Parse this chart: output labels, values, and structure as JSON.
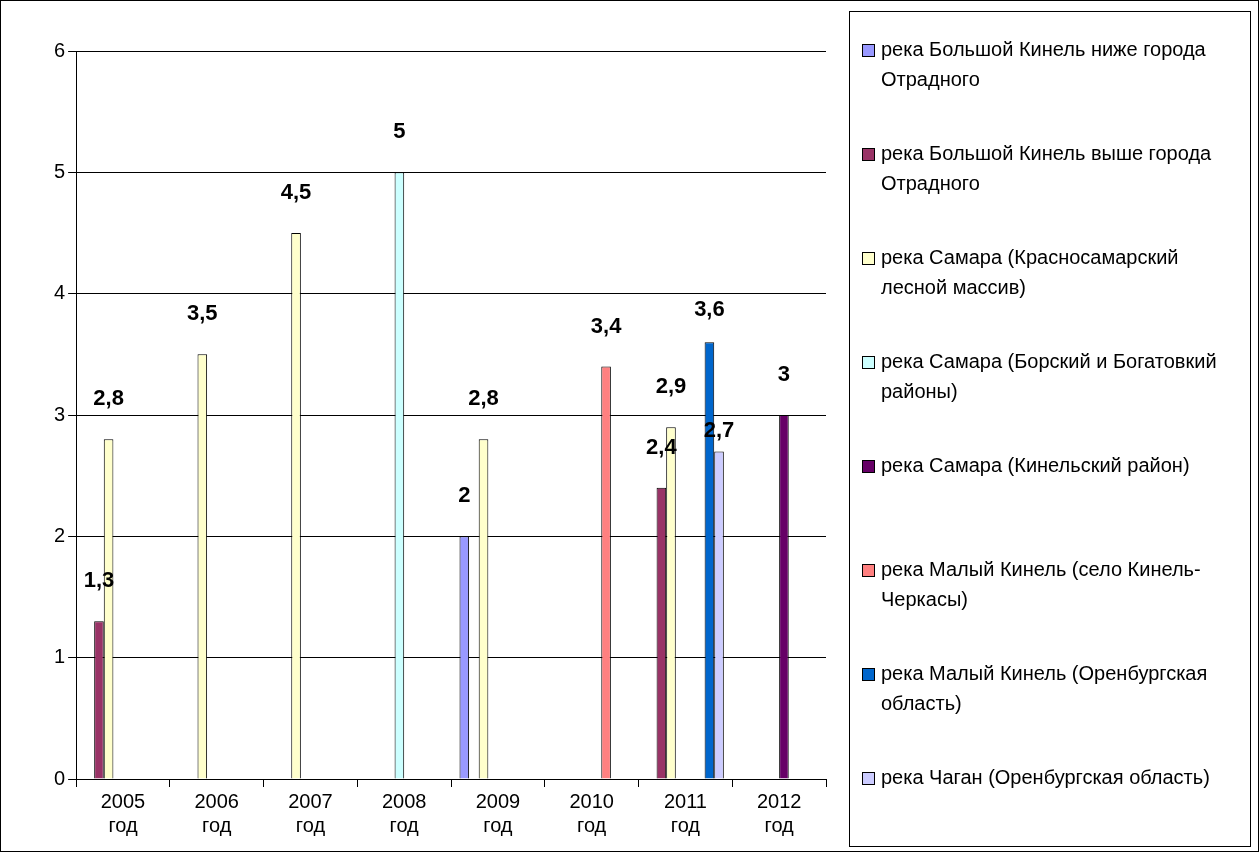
{
  "chart_data": {
    "type": "bar",
    "categories": [
      "2005 год",
      "2006 год",
      "2007 год",
      "2008 год",
      "2009 год",
      "2010 год",
      "2011 год",
      "2012 год"
    ],
    "ylim": [
      0,
      6
    ],
    "yticks": [
      0,
      1,
      2,
      3,
      4,
      5,
      6
    ],
    "grid": "y",
    "legend": "right",
    "series": [
      {
        "name": " река Большой Кинель ниже города Отрадного",
        "color": "#9999ff",
        "values": [
          null,
          null,
          null,
          null,
          2,
          null,
          null,
          null
        ],
        "value_labels": [
          null,
          null,
          null,
          null,
          "2",
          null,
          null,
          null
        ]
      },
      {
        "name": " река Большой Кинель выше города Отрадного",
        "color": "#993366",
        "values": [
          1.3,
          null,
          null,
          null,
          null,
          null,
          2.4,
          null
        ],
        "value_labels": [
          "1,3",
          null,
          null,
          null,
          null,
          null,
          "2,4",
          null
        ]
      },
      {
        "name": "река Самара (Красносамарский лесной массив)",
        "color": "#ffffcc",
        "values": [
          2.8,
          3.5,
          4.5,
          null,
          2.8,
          null,
          2.9,
          null
        ],
        "value_labels": [
          "2,8",
          "3,5",
          "4,5",
          null,
          "2,8",
          null,
          "2,9",
          null
        ]
      },
      {
        "name": "река Самара (Борский и Богатовкий районы)",
        "color": "#ccffff",
        "values": [
          null,
          null,
          null,
          5,
          null,
          null,
          null,
          null
        ],
        "value_labels": [
          null,
          null,
          null,
          "5",
          null,
          null,
          null,
          null
        ]
      },
      {
        "name": "река Самара (Кинельский район)",
        "color": "#660066",
        "values": [
          null,
          null,
          null,
          null,
          null,
          null,
          null,
          3
        ],
        "value_labels": [
          null,
          null,
          null,
          null,
          null,
          null,
          null,
          "3"
        ]
      },
      {
        "name": "река Малый Кинель (село Кинель-Черкасы)",
        "color": "#ff8080",
        "values": [
          null,
          null,
          null,
          null,
          null,
          3.4,
          null,
          null
        ],
        "value_labels": [
          null,
          null,
          null,
          null,
          null,
          "3,4",
          null,
          null
        ]
      },
      {
        "name": "река Малый Кинель (Оренбургская область)",
        "color": "#0066cc",
        "values": [
          null,
          null,
          null,
          null,
          null,
          null,
          3.6,
          null
        ],
        "value_labels": [
          null,
          null,
          null,
          null,
          null,
          null,
          "3,6",
          null
        ]
      },
      {
        "name": "река Чаган (Оренбургская область)",
        "color": "#ccccff",
        "values": [
          null,
          null,
          null,
          null,
          null,
          null,
          2.7,
          null
        ],
        "value_labels": [
          null,
          null,
          null,
          null,
          null,
          null,
          "2,7",
          null
        ]
      }
    ]
  }
}
